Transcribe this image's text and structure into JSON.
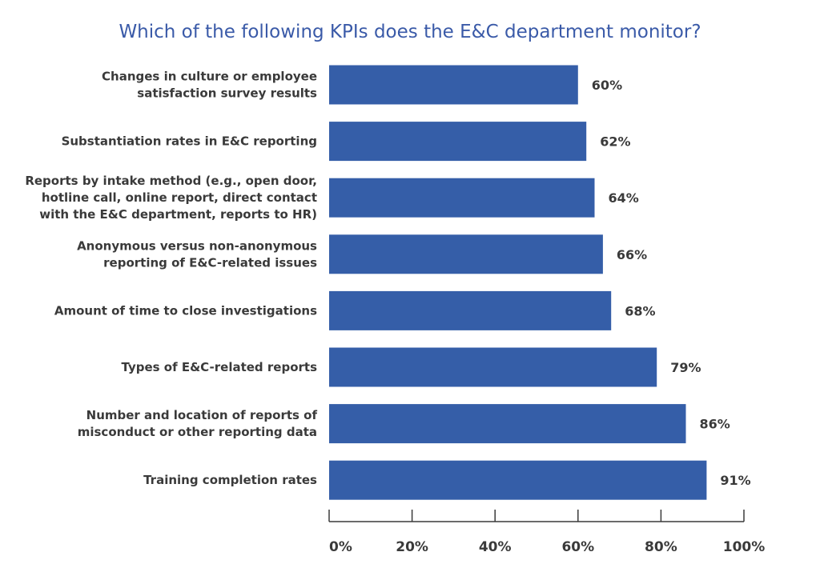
{
  "chart_data": {
    "type": "bar",
    "orientation": "horizontal",
    "title": "Which of the following KPIs does the E&C department monitor?",
    "categories": [
      [
        "Changes in culture or employee",
        "satisfaction survey results"
      ],
      [
        "Substantiation rates in E&C reporting"
      ],
      [
        "Reports by intake method (e.g., open door,",
        "hotline call, online report, direct contact",
        "with the E&C department, reports to HR)"
      ],
      [
        "Anonymous versus non-anonymous",
        "reporting of E&C-related issues"
      ],
      [
        "Amount of time to close investigations"
      ],
      [
        "Types of E&C-related reports"
      ],
      [
        "Number and location of reports of",
        "misconduct or other reporting data"
      ],
      [
        "Training completion rates"
      ]
    ],
    "values": [
      60,
      62,
      64,
      66,
      68,
      79,
      86,
      91
    ],
    "value_labels": [
      "60%",
      "62%",
      "64%",
      "66%",
      "68%",
      "79%",
      "86%",
      "91%"
    ],
    "xlim": [
      0,
      100
    ],
    "x_ticks": [
      0,
      20,
      40,
      60,
      80,
      100
    ],
    "x_tick_labels": [
      "0%",
      "20%",
      "40%",
      "60%",
      "80%",
      "100%"
    ],
    "bar_color": "#355ea8",
    "title_color": "#3a5aa8",
    "text_color": "#3a3a3a",
    "grid": false,
    "legend": "none"
  }
}
